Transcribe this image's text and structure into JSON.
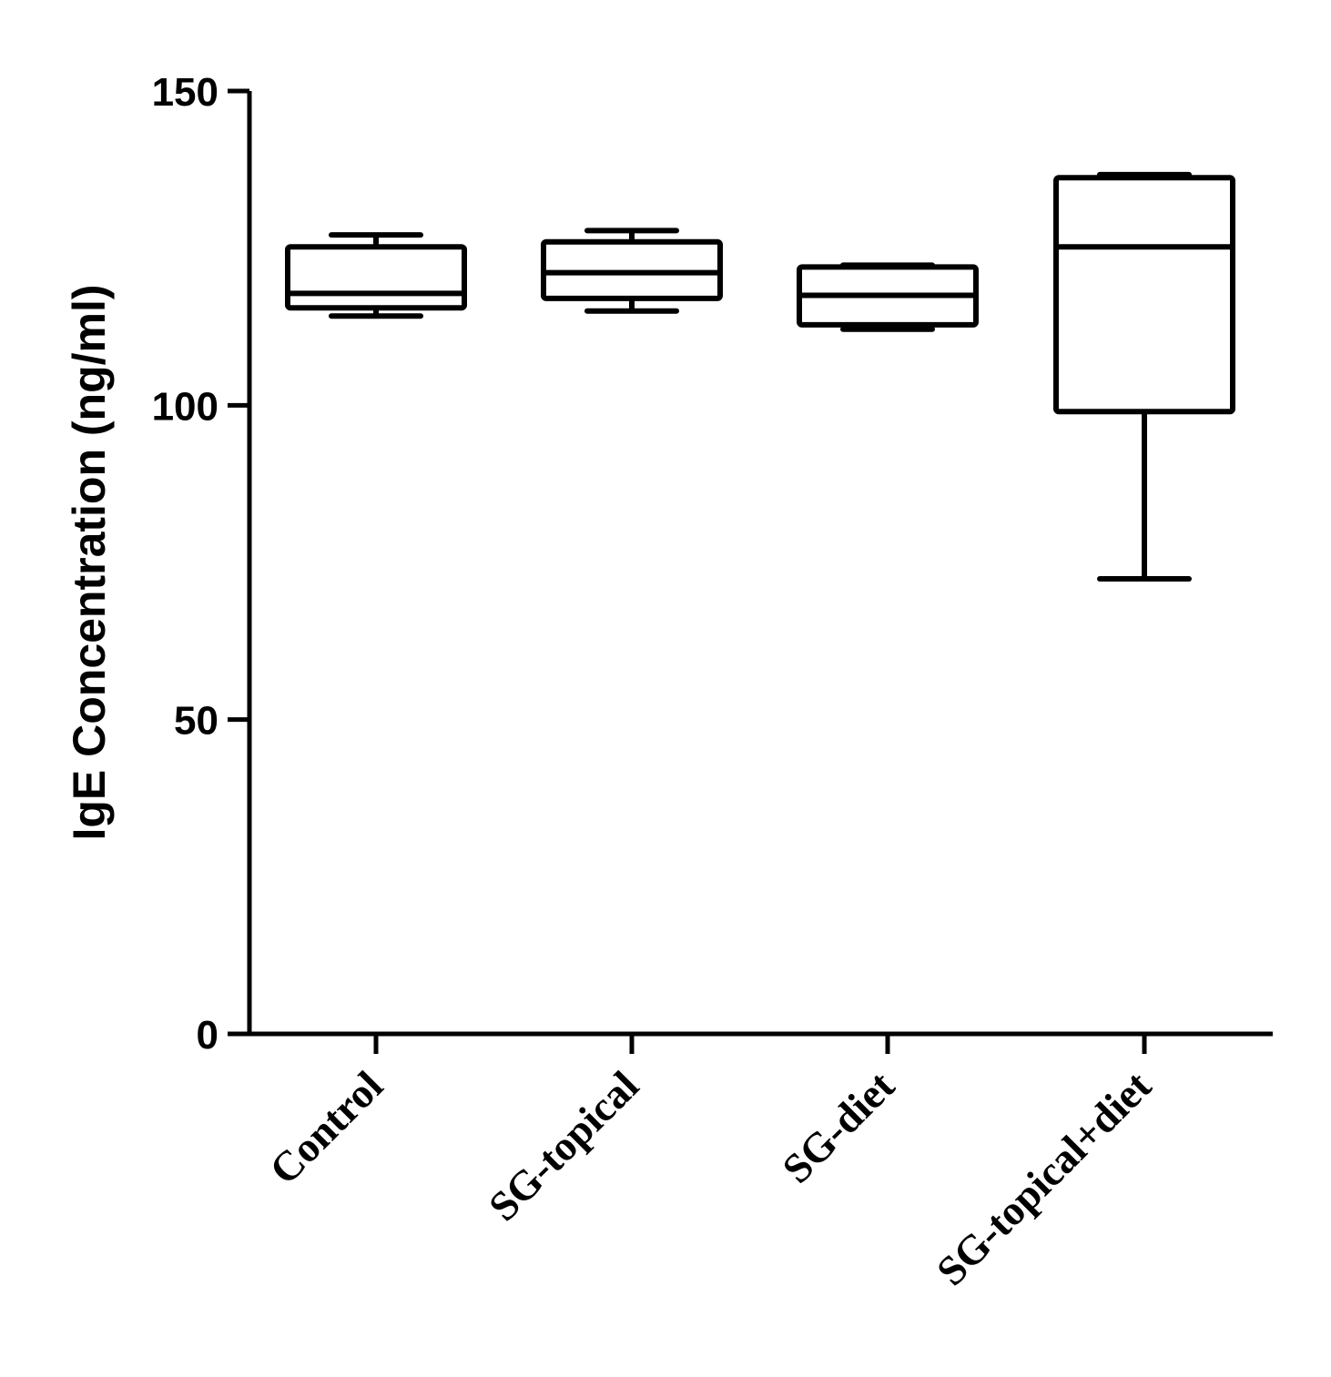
{
  "chart_data": {
    "type": "box",
    "title": "",
    "xlabel": "",
    "ylabel": "IgE Concentration (ng/ml)",
    "ylim": [
      0,
      150
    ],
    "yticks": [
      0,
      50,
      100,
      150
    ],
    "ytick_labels": [
      "0",
      "50",
      "100",
      "150"
    ],
    "grid": false,
    "legend": "none",
    "categories": [
      "Control",
      "SG-topical",
      "SG-diet",
      "SG-topical+diet"
    ],
    "boxes": [
      {
        "category": "Control",
        "min": 114.2,
        "q1": 115.5,
        "median": 117.8,
        "q3": 125.2,
        "max": 127.1
      },
      {
        "category": "SG-topical",
        "min": 115.0,
        "q1": 117.0,
        "median": 121.1,
        "q3": 126.0,
        "max": 127.8
      },
      {
        "category": "SG-diet",
        "min": 112.1,
        "q1": 112.8,
        "median": 117.5,
        "q3": 122.0,
        "max": 122.3
      },
      {
        "category": "SG-topical+diet",
        "min": 72.4,
        "q1": 99.0,
        "median": 125.2,
        "q3": 136.2,
        "max": 136.7
      }
    ],
    "colors": {
      "stroke": "#000000",
      "fill": "#ffffff"
    }
  }
}
